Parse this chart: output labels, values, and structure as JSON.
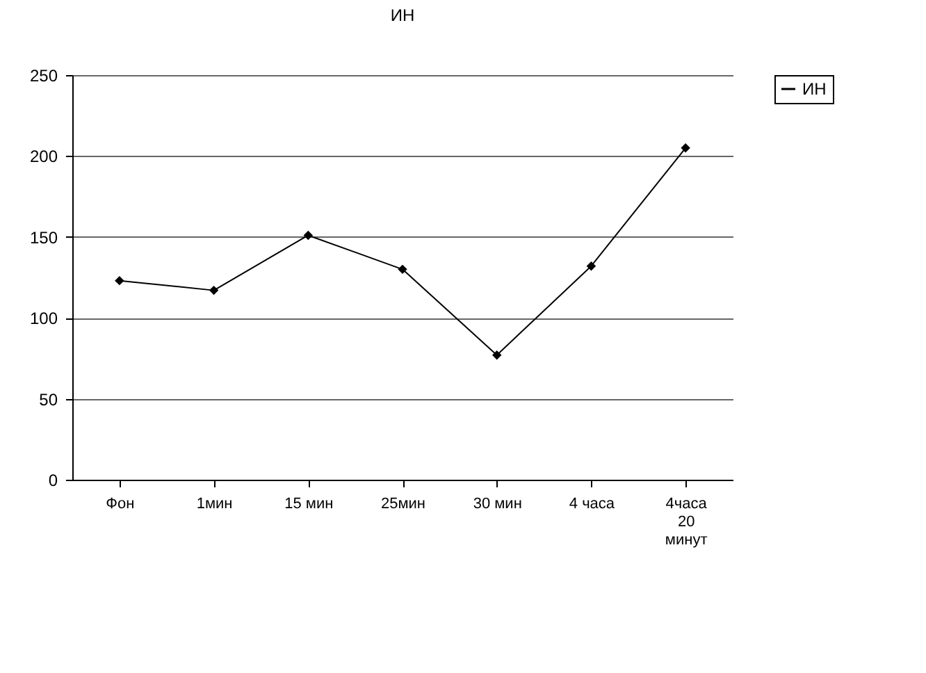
{
  "chart_data": {
    "type": "line",
    "title": "ИН",
    "categories": [
      "Фон",
      "1мин",
      "15 мин",
      "25мин",
      "30 мин",
      "4 часа",
      "4часа 20 минут"
    ],
    "series": [
      {
        "name": "ИН",
        "color": "#000000",
        "values": [
          123,
          117,
          151,
          130,
          77,
          132,
          205
        ]
      }
    ],
    "ylim": [
      0,
      250
    ],
    "yticks": [
      0,
      50,
      100,
      150,
      200,
      250
    ],
    "grid": "y",
    "legend": "right",
    "marker": "diamond",
    "line_style": "solid"
  }
}
